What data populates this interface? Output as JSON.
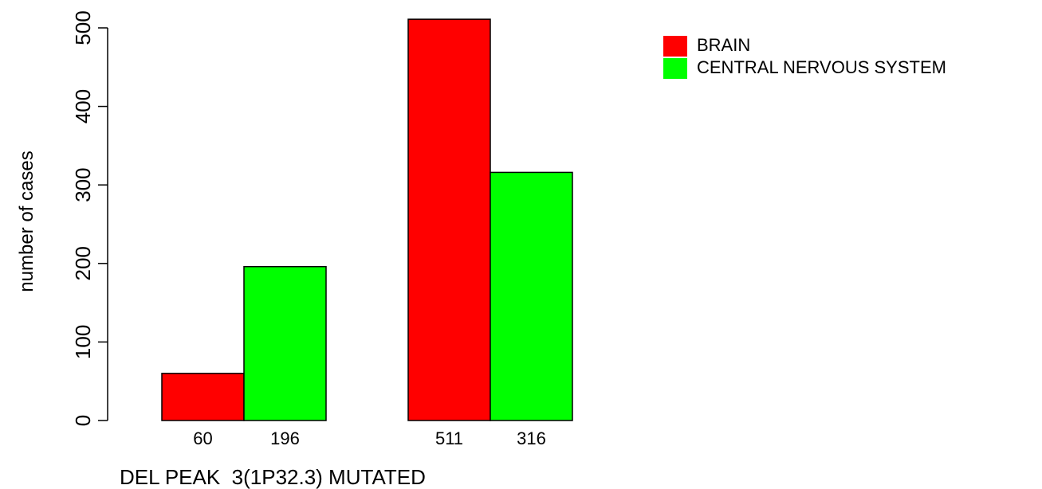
{
  "chart_data": {
    "type": "bar",
    "title": "",
    "xlabel": "DEL PEAK  3(1P32.3) MUTATED",
    "ylabel": "number of cases",
    "ylim": [
      0,
      500
    ],
    "yticks": [
      "0",
      "100",
      "200",
      "300",
      "400",
      "500"
    ],
    "groups": 2,
    "series": [
      {
        "name": "BRAIN",
        "color": "#ff0000",
        "values": [
          60,
          511
        ]
      },
      {
        "name": "CENTRAL NERVOUS SYSTEM",
        "color": "#00ff00",
        "values": [
          196,
          316
        ]
      }
    ],
    "bar_labels": [
      [
        "60",
        "196"
      ],
      [
        "511",
        "316"
      ]
    ],
    "grid": false,
    "legend_position": "top-right"
  }
}
